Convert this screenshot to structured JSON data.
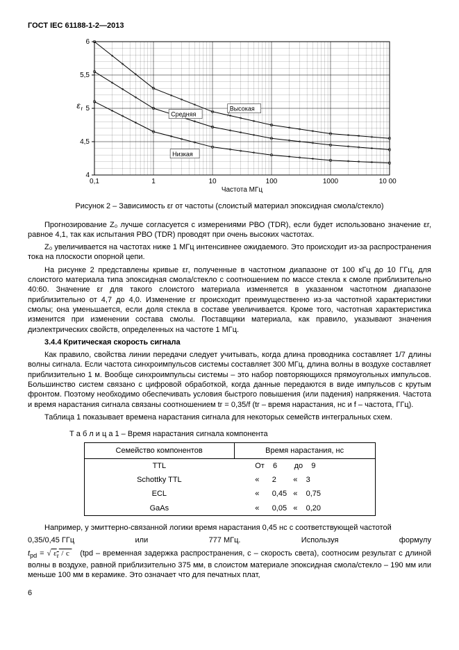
{
  "header": "ГОСТ IEC 61188-1-2—2013",
  "chart": {
    "ylabel": "εr",
    "xlabel": "Частота МГц",
    "ymin": 4,
    "ymax": 6,
    "ytick_step": 0.5,
    "xticks": [
      0.1,
      1,
      10,
      100,
      1000,
      10000
    ],
    "xticklabels": [
      "0,1",
      "1",
      "10",
      "100",
      "1000",
      "10 000"
    ],
    "curves": {
      "high": {
        "label": "Высокая",
        "y": [
          6.0,
          5.3,
          4.95,
          4.75,
          4.62,
          4.55
        ]
      },
      "medium": {
        "label": "Средняя",
        "y": [
          5.55,
          5.0,
          4.72,
          4.55,
          4.45,
          4.38
        ]
      },
      "low": {
        "label": "Низкая",
        "y": [
          5.1,
          4.65,
          4.42,
          4.3,
          4.22,
          4.18
        ]
      }
    },
    "colors": {
      "axis": "#000000",
      "grid": "#000000",
      "bg": "#ffffff"
    }
  },
  "figure_caption": "Рисунок 2 – Зависимость εr от частоты (слоистый материал эпоксидная смола/стекло)",
  "para1": "Прогнозирование Z₀ лучше согласуется с измерениями РВО (TDR), если будет использовано значение εr, равное 4,1, так как испытания РВО (TDR) проводят при очень высоких частотах.",
  "para2": "Z₀ увеличивается на частотах ниже 1 МГц интенсивнее ожидаемого. Это происходит из-за распространения тока на плоскости опорной цепи.",
  "para3": "На рисунке 2 представлены кривые εr, полученные в частотном диапазоне от 100 кГц до 10 ГГц, для слоистого материала типа эпоксидная смола/стекло с соотношением по массе стекла к смоле приблизительно 40:60. Значение εr для такого слоистого материала изменяется в указанном частотном диапазоне приблизительно от 4,7 до 4,0. Изменение εr происходит преимущественно из-за частотной характеристики смолы; она уменьшается, если доля стекла в составе увеличивается. Кроме того, частотная характеристика изменится при изменении состава смолы. Поставщики материала, как правило, указывают значения диэлектрических свойств, определенных на частоте 1 МГц.",
  "section344": "3.4.4 Критическая скорость сигнала",
  "para4": "Как правило, свойства линии передачи следует учитывать, когда длина проводника составляет 1/7 длины волны сигнала. Если частота синхроимпульсов системы составляет 300 МГц, длина волны в воздухе составляет приблизительно 1 м. Вообще синхроимпульсы системы – это набор повторяющихся прямоугольных импульсов. Большинство систем связано с цифровой обработкой, когда данные передаются в виде импульсов с крутым фронтом. Поэтому необходимо обеспечивать условия быстрого повышения (или падения) напряжения. Частота и время нарастания сигнала связаны соотношением tr = 0,35/f (tr – время нарастания, нс и f – частота, ГГц).",
  "para5": "Таблица 1 показывает времена нарастания сигнала для некоторых семейств интегральных схем.",
  "table": {
    "caption": "Т а б л и ц а  1 – Время нарастания сигнала компонента",
    "headers": [
      "Семейство компонентов",
      "Время нарастания, нс"
    ],
    "rows": [
      {
        "name": "TTL",
        "val": "От    6        до    9"
      },
      {
        "name": "Schottky TTL",
        "val": "«      2        «    3"
      },
      {
        "name": "ECL",
        "val": "«      0,45   «    0,75"
      },
      {
        "name": "GaAs",
        "val": "«      0,05   «    0,20"
      }
    ]
  },
  "para6a": "Например, у эмиттерно-связанной логики время нарастания 0,45 нс с соответствующей частотой",
  "para6b_left": "0,35/0,45 ГГц",
  "para6b_mid1": "или",
  "para6b_mid2": "777 МГц.",
  "para6b_mid3": "Используя",
  "para6b_right": "формулу",
  "formula_lhs": "tpd = ",
  "formula_sqrt": "√(εr / c)",
  "para6c": " (tpd – временная задержка распространения, c – скорость света), соотносим результат с длиной волны в воздухе, равной приблизительно 375 мм, в слоистом материале эпоксидная смола/стекло – 190 мм или меньше 100 мм в керамике. Это означает что для печатных плат,",
  "page_num": "6"
}
